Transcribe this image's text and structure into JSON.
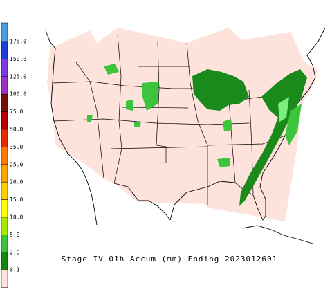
{
  "map": {
    "title": "Stage IV 01h Accum (mm) Ending 2023012601",
    "domain_color": "#fde3dc",
    "legend": [
      {
        "label": null,
        "color": "#4a9ee8"
      },
      {
        "label": "175.0",
        "color": "#1c3fd8"
      },
      {
        "label": "150.0",
        "color": "#7a3ce0"
      },
      {
        "label": "125.0",
        "color": "#9b32c8"
      },
      {
        "label": "100.0",
        "color": "#7a0a0a"
      },
      {
        "label": "75.0",
        "color": "#b00000"
      },
      {
        "label": "50.0",
        "color": "#e82a00"
      },
      {
        "label": "35.0",
        "color": "#ff7a00"
      },
      {
        "label": "25.0",
        "color": "#ffa500"
      },
      {
        "label": "20.0",
        "color": "#ffd000"
      },
      {
        "label": "15.0",
        "color": "#ffff00"
      },
      {
        "label": "10.0",
        "color": "#a8e800"
      },
      {
        "label": "5.0",
        "color": "#3cc43c"
      },
      {
        "label": "2.0",
        "color": "#0f8a0f"
      },
      {
        "label": "0.1",
        "color": "#fde3dc"
      }
    ]
  }
}
